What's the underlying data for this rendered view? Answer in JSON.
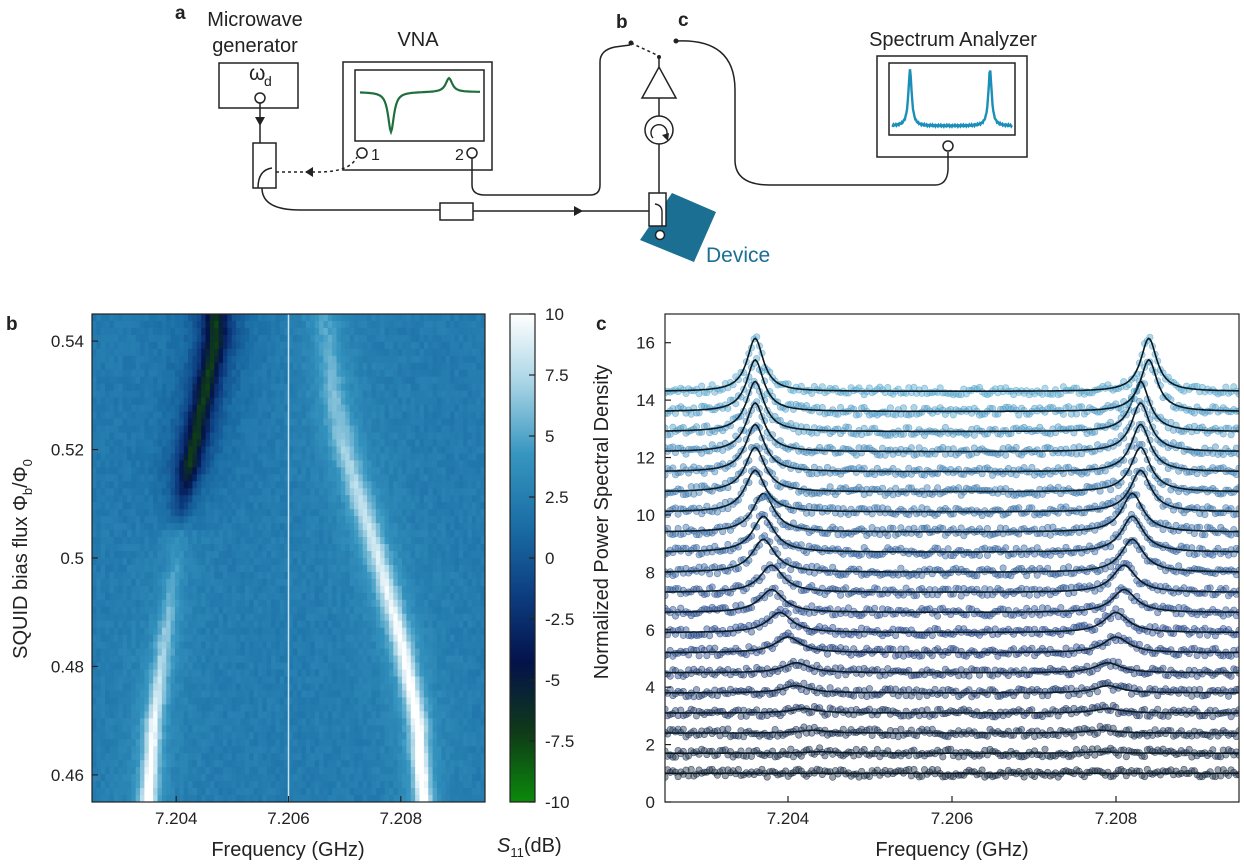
{
  "panel_labels": {
    "a": "a",
    "b": "b",
    "c": "c"
  },
  "schematic": {
    "mw_generator_label_1": "Microwave",
    "mw_generator_label_2": "generator",
    "omega": "ω",
    "omega_sub": "d",
    "vna_label": "VNA",
    "vna_port1": "1",
    "vna_port2": "2",
    "switch_b": "b",
    "switch_c": "c",
    "spectrum_analyzer_label": "Spectrum Analyzer",
    "device_label": "Device",
    "colors": {
      "vna_trace": "#1f6e3b",
      "sa_trace": "#1b8fb8",
      "device": "#1a6f93"
    }
  },
  "chart_data": [
    {
      "type": "heatmap",
      "panel": "b",
      "xlabel": "Frequency (GHz)",
      "ylabel_main": "SQUID bias flux Φ",
      "ylabel_sub_b": "b",
      "ylabel_mid": "/Φ",
      "ylabel_sub_0": "0",
      "xlim": [
        7.2025,
        7.2095
      ],
      "ylim": [
        0.545,
        0.455
      ],
      "xticks": [
        "7.204",
        "7.206",
        "7.208"
      ],
      "xtick_values": [
        7.204,
        7.206,
        7.208
      ],
      "yticks": [
        "0.46",
        "0.48",
        "0.5",
        "0.52",
        "0.54"
      ],
      "ytick_values": [
        0.46,
        0.48,
        0.5,
        0.52,
        0.54
      ],
      "vertical_line_x": 7.206,
      "colorbar": {
        "label_main": "S",
        "label_sub": "11",
        "label_unit": "(dB)",
        "range": [
          -10,
          10
        ],
        "ticks": [
          "10",
          "7.5",
          "5",
          "2.5",
          "0",
          "-2.5",
          "-5",
          "-7.5",
          "-10"
        ],
        "tick_values": [
          10,
          7.5,
          5,
          2.5,
          0,
          -2.5,
          -5,
          -7.5,
          -10
        ],
        "colors": [
          "#0b8a0b",
          "#0f3a18",
          "#04124a",
          "#0d3f82",
          "#1b6fa6",
          "#3796c0",
          "#a7d4e5",
          "#ffffff"
        ]
      },
      "left_ridge": {
        "flux": [
          0.455,
          0.47,
          0.485,
          0.5,
          0.51,
          0.52,
          0.53,
          0.54,
          0.545
        ],
        "freq": [
          7.2035,
          7.2036,
          7.2038,
          7.204,
          7.2041,
          7.2043,
          7.2045,
          7.2047,
          7.2047
        ]
      },
      "right_ridge": {
        "flux": [
          0.455,
          0.47,
          0.485,
          0.5,
          0.51,
          0.52,
          0.53,
          0.54,
          0.545
        ],
        "freq": [
          7.2084,
          7.2083,
          7.208,
          7.2076,
          7.2073,
          7.207,
          7.2068,
          7.2067,
          7.2066
        ]
      }
    },
    {
      "type": "line",
      "panel": "c",
      "xlabel": "Frequency (GHz)",
      "ylabel": "Normalized Power Spectral Density",
      "xlim": [
        7.2025,
        7.2095
      ],
      "ylim": [
        0,
        17
      ],
      "xticks": [
        "7.204",
        "7.206",
        "7.208"
      ],
      "xtick_values": [
        7.204,
        7.206,
        7.208
      ],
      "yticks": [
        "0",
        "2",
        "4",
        "6",
        "8",
        "10",
        "12",
        "14",
        "16"
      ],
      "ytick_values": [
        0,
        2,
        4,
        6,
        8,
        10,
        12,
        14,
        16
      ],
      "series_offsets": [
        1,
        1.7,
        2.4,
        3.1,
        3.8,
        4.5,
        5.2,
        5.9,
        6.6,
        7.3,
        8,
        8.7,
        9.4,
        10.1,
        10.8,
        11.5,
        12.2,
        12.9,
        13.6,
        14.3
      ],
      "peak_heights": [
        0,
        0.05,
        0.1,
        0.15,
        0.25,
        0.35,
        0.55,
        0.7,
        0.8,
        0.95,
        1.15,
        1.25,
        1.35,
        1.45,
        1.55,
        1.65,
        1.7,
        1.75,
        1.8,
        1.85
      ],
      "left_peak_freq": [
        7.2045,
        7.2044,
        7.2043,
        7.2042,
        7.2041,
        7.2041,
        7.204,
        7.2039,
        7.2038,
        7.2038,
        7.2037,
        7.2037,
        7.2037,
        7.2036,
        7.2036,
        7.2036,
        7.2036,
        7.2036,
        7.2036,
        7.2036
      ],
      "right_peak_freq": [
        7.2078,
        7.2078,
        7.2078,
        7.2079,
        7.2079,
        7.2079,
        7.208,
        7.208,
        7.2081,
        7.2081,
        7.2082,
        7.2082,
        7.2082,
        7.2083,
        7.2083,
        7.2083,
        7.2083,
        7.2083,
        7.2084,
        7.2084
      ],
      "linewidth_ghz": 0.00012,
      "trace_colors_low_to_high": [
        "#1c2e44",
        "#2b4a8a",
        "#3d72a8",
        "#5aa9cf"
      ],
      "fit_color": "#0b1a22"
    }
  ]
}
